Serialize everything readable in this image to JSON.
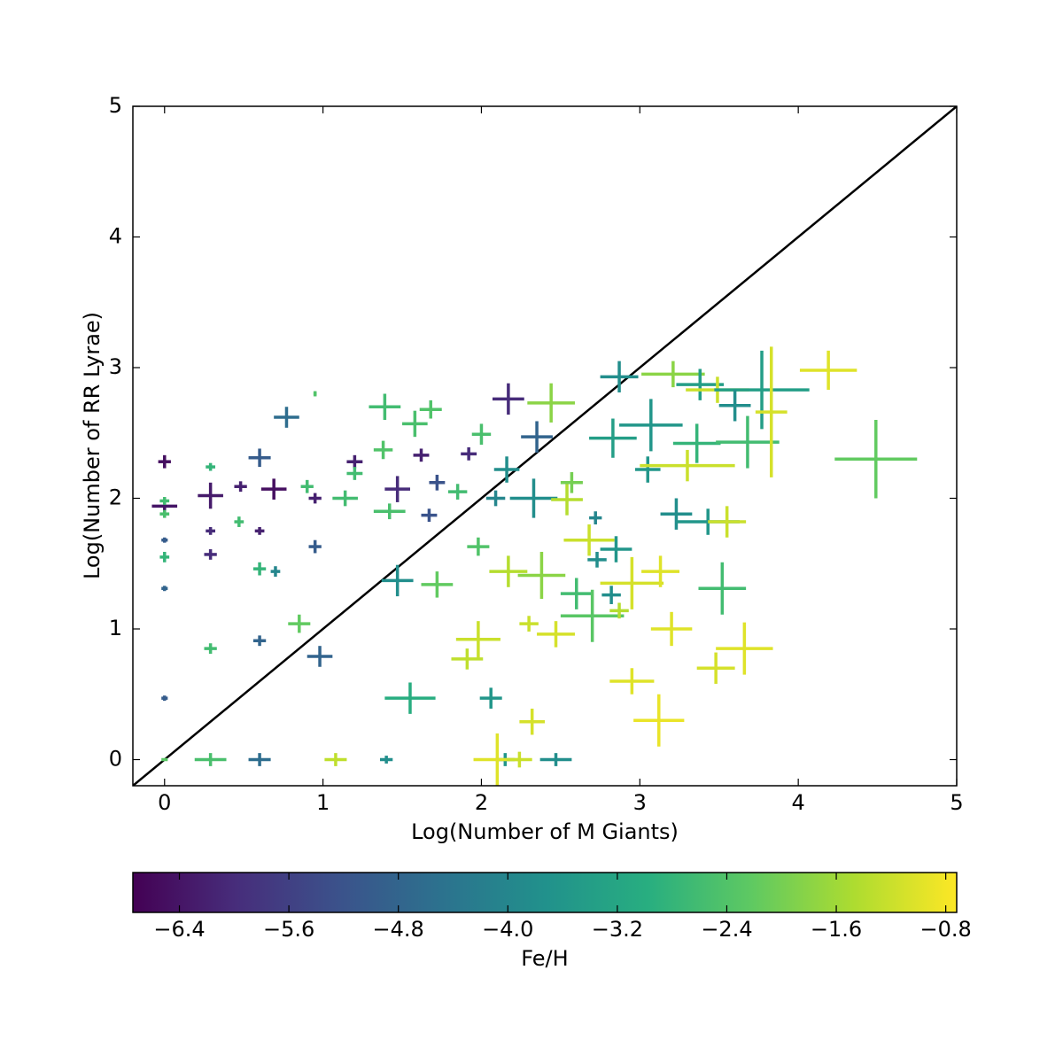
{
  "chart_data": {
    "type": "scatter",
    "xlabel": "Log(Number of M Giants)",
    "ylabel": "Log(Number of RR Lyrae)",
    "xlim": [
      -0.2,
      5
    ],
    "ylim": [
      -0.2,
      5
    ],
    "xticks": [
      0,
      1,
      2,
      3,
      4,
      5
    ],
    "yticks": [
      0,
      1,
      2,
      3,
      4,
      5
    ],
    "colormap": "viridis",
    "colorbar_label": "Fe/H",
    "clim": [
      -6.74,
      -0.72
    ],
    "cticks": [
      {
        "value": -6.4,
        "label": "−6.4"
      },
      {
        "value": -5.6,
        "label": "−5.6"
      },
      {
        "value": -4.8,
        "label": "−4.8"
      },
      {
        "value": -4.0,
        "label": "−4.0"
      },
      {
        "value": -3.2,
        "label": "−3.2"
      },
      {
        "value": -2.4,
        "label": "−2.4"
      },
      {
        "value": -1.6,
        "label": "−1.6"
      },
      {
        "value": -0.8,
        "label": "−0.8"
      }
    ],
    "reference_line": {
      "x": [
        -0.2,
        5
      ],
      "y": [
        -0.2,
        5
      ],
      "color": "#000000"
    },
    "x": [
      0,
      0,
      0,
      0,
      0,
      0,
      0,
      0,
      0,
      0.29,
      0.29,
      0.29,
      0.29,
      0.29,
      0.29,
      0.48,
      0.47,
      0.6,
      0.6,
      0.6,
      0.6,
      0.6,
      0.69,
      0.7,
      0.77,
      0.9,
      0.95,
      0.85,
      0.95,
      0.98,
      1.08,
      1.14,
      1.2,
      1.2,
      1.39,
      1.38,
      1.47,
      1.42,
      1.47,
      1.4,
      1.55,
      1.58,
      1.62,
      1.68,
      1.72,
      1.67,
      1.72,
      1.92,
      2.0,
      1.85,
      1.98,
      1.91,
      1.98,
      2.06,
      2.17,
      2.16,
      2.09,
      2.33,
      2.15,
      2.1,
      2.47,
      2.24,
      2.17,
      2.38,
      2.44,
      2.35,
      2.3,
      2.32,
      2.47,
      2.54,
      2.57,
      2.6,
      2.72,
      2.68,
      2.73,
      2.7,
      2.83,
      2.87,
      2.85,
      2.82,
      2.87,
      2.95,
      2.95,
      3.12,
      3.13,
      3.2,
      3.05,
      3.07,
      3.21,
      3.23,
      3.3,
      3.38,
      3.43,
      3.36,
      3.49,
      3.55,
      3.52,
      3.48,
      3.66,
      3.68,
      3.77,
      3.83,
      4.19,
      4.49,
      3.6,
      0.95
    ],
    "y": [
      2.28,
      1.94,
      1.98,
      1.88,
      1.68,
      1.55,
      1.31,
      0.47,
      0,
      2.02,
      2.24,
      1.75,
      1.57,
      0.85,
      0,
      2.09,
      1.82,
      2.31,
      1.75,
      1.46,
      0.91,
      0,
      2.07,
      1.44,
      2.62,
      2.09,
      1.63,
      1.04,
      2.0,
      0.79,
      0,
      2.0,
      2.28,
      2.19,
      2.7,
      2.37,
      2.07,
      1.9,
      1.37,
      0,
      0.47,
      2.57,
      2.33,
      2.68,
      2.12,
      1.87,
      1.34,
      2.34,
      2.49,
      2.05,
      1.63,
      0.77,
      0.92,
      0.47,
      2.76,
      2.22,
      2.0,
      2.0,
      0,
      0,
      0,
      0,
      1.44,
      1.41,
      2.73,
      2.47,
      1.04,
      0.29,
      0.96,
      1.99,
      2.12,
      1.27,
      1.85,
      1.68,
      1.53,
      1.1,
      2.46,
      2.93,
      1.61,
      1.26,
      1.14,
      1.35,
      0.6,
      0.3,
      1.44,
      1.0,
      2.22,
      2.56,
      2.95,
      1.88,
      2.25,
      2.87,
      1.82,
      2.42,
      2.83,
      1.82,
      1.31,
      0.7,
      0.85,
      2.43,
      2.83,
      2.66,
      2.98,
      2.3,
      2.71,
      2.8
    ],
    "xerr": [
      0.04,
      0.08,
      0.03,
      0.03,
      0.02,
      0.03,
      0.02,
      0.02,
      0.02,
      0.08,
      0.03,
      0.03,
      0.04,
      0.04,
      0.1,
      0.04,
      0.03,
      0.07,
      0.03,
      0.04,
      0.04,
      0.07,
      0.08,
      0.03,
      0.08,
      0.04,
      0.04,
      0.07,
      0.04,
      0.08,
      0.07,
      0.08,
      0.05,
      0.05,
      0.1,
      0.06,
      0.08,
      0.1,
      0.1,
      0.04,
      0.16,
      0.08,
      0.05,
      0.07,
      0.05,
      0.05,
      0.1,
      0.05,
      0.06,
      0.06,
      0.07,
      0.1,
      0.14,
      0.07,
      0.1,
      0.08,
      0.06,
      0.15,
      0.06,
      0.15,
      0.1,
      0.08,
      0.12,
      0.15,
      0.15,
      0.1,
      0.06,
      0.08,
      0.12,
      0.1,
      0.07,
      0.1,
      0.04,
      0.16,
      0.06,
      0.2,
      0.15,
      0.12,
      0.1,
      0.06,
      0.06,
      0.2,
      0.14,
      0.16,
      0.12,
      0.13,
      0.08,
      0.2,
      0.2,
      0.1,
      0.3,
      0.15,
      0.2,
      0.15,
      0.2,
      0.12,
      0.15,
      0.12,
      0.18,
      0.2,
      0.3,
      0.1,
      0.18,
      0.26,
      0.1,
      0.01
    ],
    "yerr": [
      0.05,
      0.05,
      0.03,
      0.03,
      0.02,
      0.04,
      0.02,
      0.02,
      0.01,
      0.1,
      0.03,
      0.03,
      0.04,
      0.04,
      0.05,
      0.04,
      0.04,
      0.07,
      0.03,
      0.05,
      0.04,
      0.05,
      0.08,
      0.04,
      0.08,
      0.05,
      0.05,
      0.07,
      0.04,
      0.08,
      0.05,
      0.06,
      0.05,
      0.05,
      0.1,
      0.07,
      0.1,
      0.06,
      0.12,
      0.03,
      0.12,
      0.1,
      0.05,
      0.07,
      0.06,
      0.05,
      0.1,
      0.05,
      0.08,
      0.06,
      0.07,
      0.08,
      0.14,
      0.08,
      0.12,
      0.1,
      0.06,
      0.15,
      0.05,
      0.2,
      0.05,
      0.06,
      0.12,
      0.18,
      0.15,
      0.12,
      0.06,
      0.1,
      0.1,
      0.12,
      0.08,
      0.12,
      0.05,
      0.12,
      0.06,
      0.2,
      0.15,
      0.12,
      0.1,
      0.07,
      0.06,
      0.2,
      0.1,
      0.2,
      0.12,
      0.13,
      0.1,
      0.2,
      0.1,
      0.12,
      0.12,
      0.12,
      0.1,
      0.15,
      0.1,
      0.12,
      0.2,
      0.12,
      0.2,
      0.2,
      0.3,
      0.5,
      0.15,
      0.3,
      0.12,
      0.02
    ],
    "c": [
      -6.5,
      -6.4,
      -2.6,
      -2.5,
      -5.0,
      -2.8,
      -4.8,
      -5.0,
      -2.3,
      -6.3,
      -2.8,
      -6.0,
      -6.0,
      -2.6,
      -2.5,
      -6.2,
      -2.6,
      -5.0,
      -6.2,
      -2.8,
      -4.8,
      -4.6,
      -6.5,
      -4.0,
      -4.6,
      -2.6,
      -5.0,
      -2.2,
      -6.2,
      -4.8,
      -1.3,
      -2.6,
      -6.2,
      -2.6,
      -2.6,
      -2.4,
      -6.0,
      -2.5,
      -3.8,
      -3.8,
      -3.0,
      -2.5,
      -6.2,
      -2.4,
      -5.2,
      -5.2,
      -2.2,
      -6.0,
      -2.5,
      -2.6,
      -2.4,
      -1.3,
      -1.2,
      -3.6,
      -6.0,
      -3.8,
      -4.0,
      -3.8,
      -3.6,
      -1.0,
      -3.8,
      -1.2,
      -1.4,
      -1.8,
      -1.8,
      -4.8,
      -1.2,
      -1.1,
      -1.1,
      -1.4,
      -2.0,
      -2.6,
      -4.0,
      -1.2,
      -3.8,
      -2.3,
      -3.4,
      -3.8,
      -3.6,
      -3.8,
      -1.4,
      -1.1,
      -1.0,
      -0.9,
      -1.0,
      -1.0,
      -3.6,
      -3.6,
      -1.8,
      -3.8,
      -1.2,
      -3.4,
      -3.6,
      -2.8,
      -1.2,
      -1.2,
      -2.6,
      -1.1,
      -1.0,
      -2.6,
      -3.4,
      -1.1,
      -1.0,
      -2.2,
      -3.8,
      -2.4
    ]
  }
}
